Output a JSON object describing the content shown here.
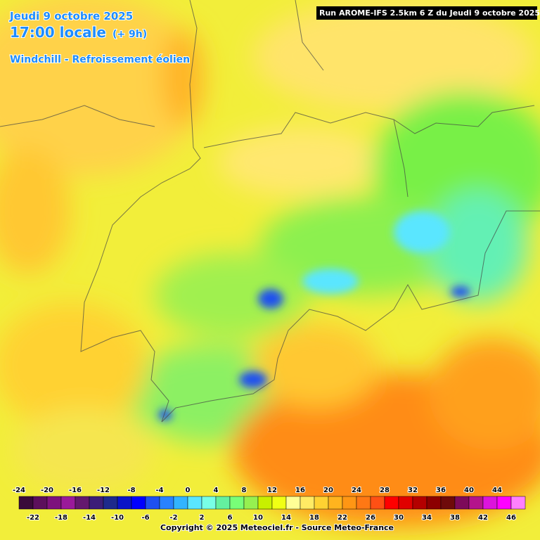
{
  "header": {
    "date": "Jeudi 9 octobre 2025",
    "time": "17:00 locale",
    "offset": "(+ 9h)",
    "variable": "Windchill - Refroissement éolien",
    "run": "Run AROME-IFS 2.5km 6 Z du Jeudi 9 octobre 2025"
  },
  "legend": {
    "items": [
      {
        "value": -24,
        "color": "#3a0a3a"
      },
      {
        "value": -22,
        "color": "#5c0f5c"
      },
      {
        "value": -20,
        "color": "#7d127d"
      },
      {
        "value": -18,
        "color": "#9a1a9a"
      },
      {
        "value": -16,
        "color": "#64186e"
      },
      {
        "value": -14,
        "color": "#3c1e78"
      },
      {
        "value": -12,
        "color": "#1e2a8c"
      },
      {
        "value": -10,
        "color": "#0a14c8"
      },
      {
        "value": -8,
        "color": "#0000ff"
      },
      {
        "value": -6,
        "color": "#1e50f0"
      },
      {
        "value": -4,
        "color": "#2882ff"
      },
      {
        "value": -2,
        "color": "#32b4ff"
      },
      {
        "value": 0,
        "color": "#5ae6ff"
      },
      {
        "value": 2,
        "color": "#78ffe6"
      },
      {
        "value": 4,
        "color": "#64f0a0"
      },
      {
        "value": 6,
        "color": "#78ff78"
      },
      {
        "value": 8,
        "color": "#96f050"
      },
      {
        "value": 10,
        "color": "#c8f000"
      },
      {
        "value": 12,
        "color": "#f0ff14"
      },
      {
        "value": 14,
        "color": "#ffff96"
      },
      {
        "value": 16,
        "color": "#ffeb64"
      },
      {
        "value": 18,
        "color": "#ffd232"
      },
      {
        "value": 20,
        "color": "#ffb41e"
      },
      {
        "value": 22,
        "color": "#ff9614"
      },
      {
        "value": 24,
        "color": "#ff7814"
      },
      {
        "value": 26,
        "color": "#ff5014"
      },
      {
        "value": 28,
        "color": "#ff0000"
      },
      {
        "value": 30,
        "color": "#e00000"
      },
      {
        "value": 32,
        "color": "#b40000"
      },
      {
        "value": 34,
        "color": "#8c0000"
      },
      {
        "value": 36,
        "color": "#6e0a0a"
      },
      {
        "value": 38,
        "color": "#7d0a5a"
      },
      {
        "value": 40,
        "color": "#b4148c"
      },
      {
        "value": 42,
        "color": "#dc14dc"
      },
      {
        "value": 44,
        "color": "#ff00ff"
      },
      {
        "value": 46,
        "color": "#ff80ff"
      }
    ]
  },
  "footer": {
    "copyright": "Copyright © 2025 Meteociel.fr - Source Meteo-France"
  }
}
